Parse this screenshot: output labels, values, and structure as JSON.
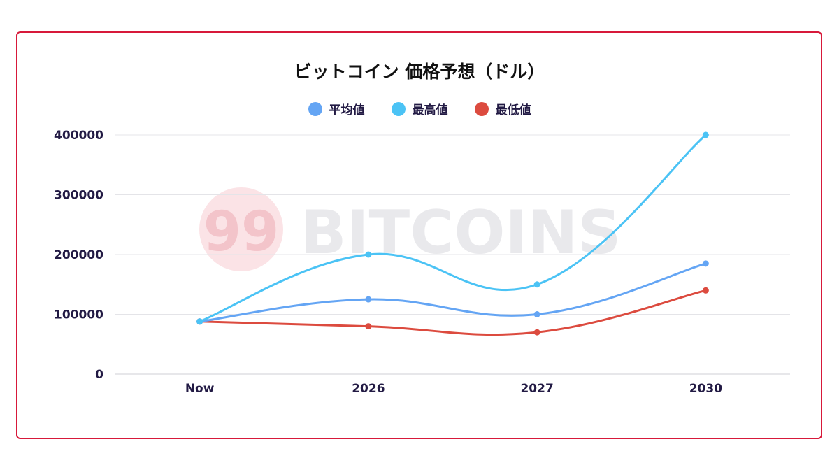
{
  "chart_data": {
    "type": "line",
    "title": "ビットコイン 価格予想（ドル）",
    "categories": [
      "Now",
      "2026",
      "2027",
      "2030"
    ],
    "series": [
      {
        "name": "平均値",
        "color": "#64a5f4",
        "values": [
          88000,
          125000,
          100000,
          185000
        ]
      },
      {
        "name": "最高値",
        "color": "#4bc3f5",
        "values": [
          88000,
          200000,
          150000,
          400000
        ]
      },
      {
        "name": "最低値",
        "color": "#dc4b3f",
        "values": [
          88000,
          80000,
          70000,
          140000
        ]
      }
    ],
    "yticks": [
      "0",
      "100000",
      "200000",
      "300000",
      "400000"
    ],
    "ylim": [
      0,
      400000
    ],
    "xlabel": "",
    "ylabel": "",
    "grid": true,
    "legend": "top",
    "smooth": true
  },
  "watermark": {
    "text": "BITCOINS",
    "badge": "99"
  },
  "frame_color": "#d7193a"
}
